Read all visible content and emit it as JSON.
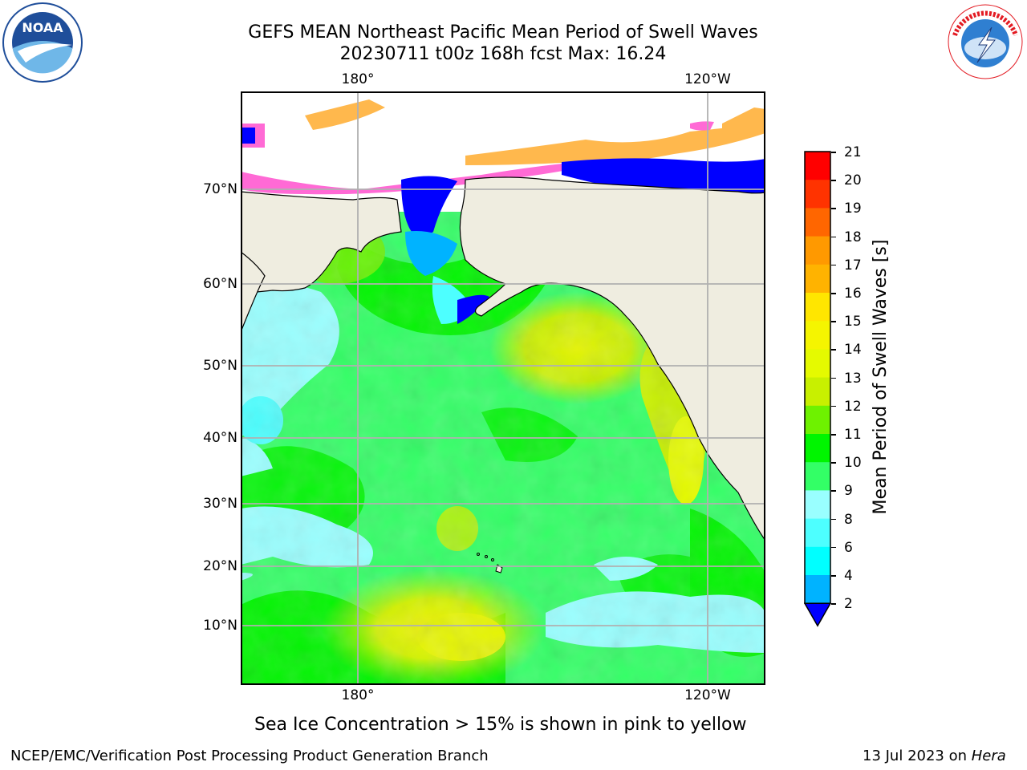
{
  "header": {
    "title_line1": "GEFS MEAN Northeast Pacific Mean Period of Swell Waves",
    "title_line2": "20230711 t00z 168h fcst   Max: 16.24"
  },
  "logos": {
    "left": "NOAA",
    "left_ring_text": "NATIONAL OCEANIC AND ATMOSPHERIC ADMINISTRATION · U.S. DEPARTMENT OF COMMERCE",
    "right_ring_text": "NATIONAL WEATHER SERVICE"
  },
  "map": {
    "lon_labels": [
      "180°",
      "120°W"
    ],
    "lat_labels": [
      "70°N",
      "60°N",
      "50°N",
      "40°N",
      "30°N",
      "20°N",
      "10°N"
    ],
    "land_color": "#efede0",
    "ocean_note": "swell period field",
    "max_value": 16.24
  },
  "colorbar": {
    "label": "Mean Period of Swell Waves [s]",
    "ticks": [
      "21",
      "20",
      "19",
      "18",
      "17",
      "16",
      "15",
      "14",
      "13",
      "12",
      "11",
      "10",
      "9",
      "8",
      "6",
      "4",
      "2"
    ],
    "colors": [
      "#ff0000",
      "#ff3300",
      "#ff6600",
      "#ff9900",
      "#ffb300",
      "#ffe600",
      "#f5f500",
      "#e5fa00",
      "#c8f000",
      "#6ef200",
      "#00f500",
      "#33ff66",
      "#99ffff",
      "#4dffff",
      "#00ffff",
      "#00b3ff",
      "#0000ff"
    ]
  },
  "caption": "Sea Ice Concentration > 15% is shown in pink to yellow",
  "footer": {
    "left": "NCEP/EMC/Verification Post Processing Product Generation Branch",
    "right_date": "13 Jul 2023 on ",
    "right_host": "Hera"
  }
}
